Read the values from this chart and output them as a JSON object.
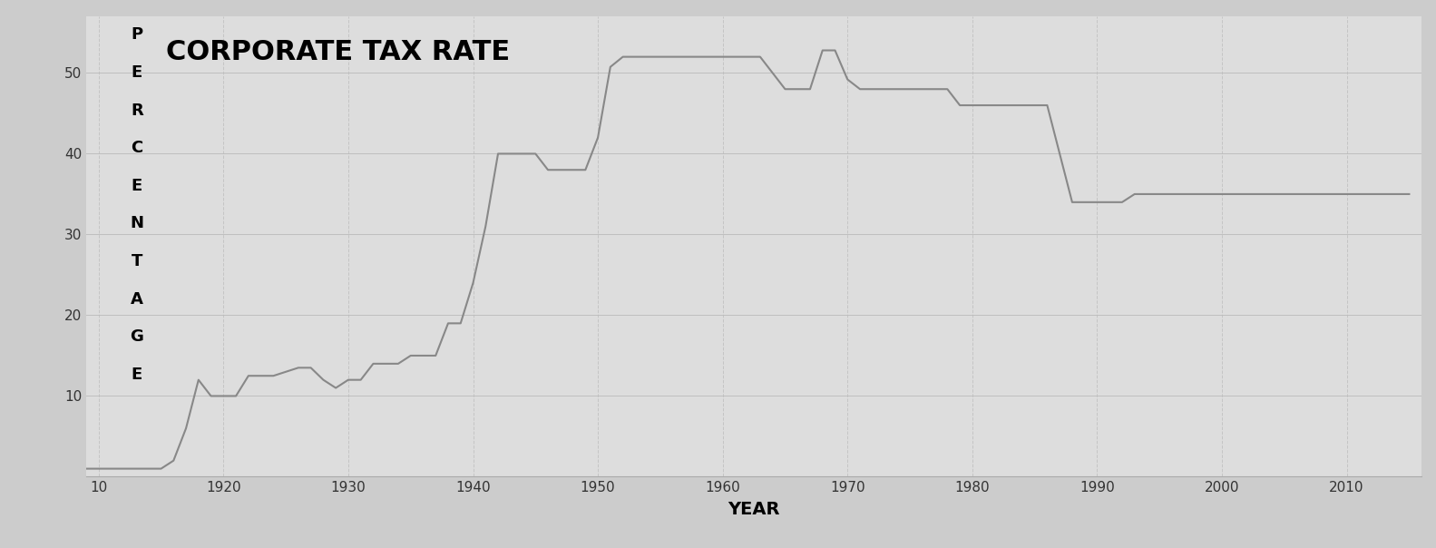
{
  "title": "CORPORATE TAX RATE",
  "xlabel": "YEAR",
  "ylabel": "PERCENTAGE",
  "background_color": "#cccccc",
  "plot_bg_color": "#dddddd",
  "line_color": "#888888",
  "line_width": 1.5,
  "grid_color": "#bbbbbb",
  "xlim": [
    1909,
    2016
  ],
  "ylim": [
    0,
    57
  ],
  "xticks": [
    1910,
    1920,
    1930,
    1940,
    1950,
    1960,
    1970,
    1980,
    1990,
    2000,
    2010
  ],
  "xticklabels": [
    "10",
    "1920",
    "1930",
    "1940",
    "1950",
    "1960",
    "1970",
    "1980",
    "1990",
    "2000",
    "2010"
  ],
  "yticks": [
    10,
    20,
    30,
    40,
    50
  ],
  "years": [
    1909,
    1910,
    1911,
    1912,
    1913,
    1914,
    1915,
    1916,
    1917,
    1918,
    1919,
    1920,
    1921,
    1922,
    1923,
    1924,
    1925,
    1926,
    1927,
    1928,
    1929,
    1930,
    1931,
    1932,
    1933,
    1934,
    1935,
    1936,
    1937,
    1938,
    1939,
    1940,
    1941,
    1942,
    1943,
    1944,
    1945,
    1946,
    1947,
    1948,
    1949,
    1950,
    1951,
    1952,
    1953,
    1954,
    1955,
    1956,
    1957,
    1958,
    1959,
    1960,
    1961,
    1962,
    1963,
    1964,
    1965,
    1966,
    1967,
    1968,
    1969,
    1970,
    1971,
    1972,
    1973,
    1974,
    1975,
    1976,
    1977,
    1978,
    1979,
    1980,
    1981,
    1982,
    1983,
    1984,
    1985,
    1986,
    1987,
    1988,
    1989,
    1990,
    1991,
    1992,
    1993,
    1994,
    1995,
    1996,
    1997,
    1998,
    1999,
    2000,
    2001,
    2002,
    2003,
    2004,
    2005,
    2006,
    2007,
    2008,
    2009,
    2010,
    2011,
    2012,
    2013,
    2014,
    2015
  ],
  "rates": [
    1,
    1,
    1,
    1,
    1,
    1,
    1,
    2,
    6,
    12,
    10,
    10,
    10,
    12.5,
    12.5,
    12.5,
    13,
    13.5,
    13.5,
    12,
    11,
    12,
    12,
    14,
    14,
    14,
    15,
    15,
    15,
    19,
    19,
    24,
    31,
    40,
    40,
    40,
    40,
    38,
    38,
    38,
    38,
    42,
    50.75,
    52,
    52,
    52,
    52,
    52,
    52,
    52,
    52,
    52,
    52,
    52,
    52,
    50,
    48,
    48,
    48,
    52.8,
    52.8,
    49.2,
    48,
    48,
    48,
    48,
    48,
    48,
    48,
    48,
    46,
    46,
    46,
    46,
    46,
    46,
    46,
    46,
    40,
    34,
    34,
    34,
    34,
    34,
    35,
    35,
    35,
    35,
    35,
    35,
    35,
    35,
    35,
    35,
    35,
    35,
    35,
    35,
    35,
    35,
    35,
    35,
    35,
    35,
    35,
    35,
    35
  ],
  "ylabel_letters": [
    "P",
    "E",
    "R",
    "C",
    "E",
    "N",
    "T",
    "A",
    "G",
    "E"
  ],
  "title_fontsize": 22,
  "tick_fontsize": 11,
  "xlabel_fontsize": 14,
  "ylabel_letter_fontsize": 13
}
